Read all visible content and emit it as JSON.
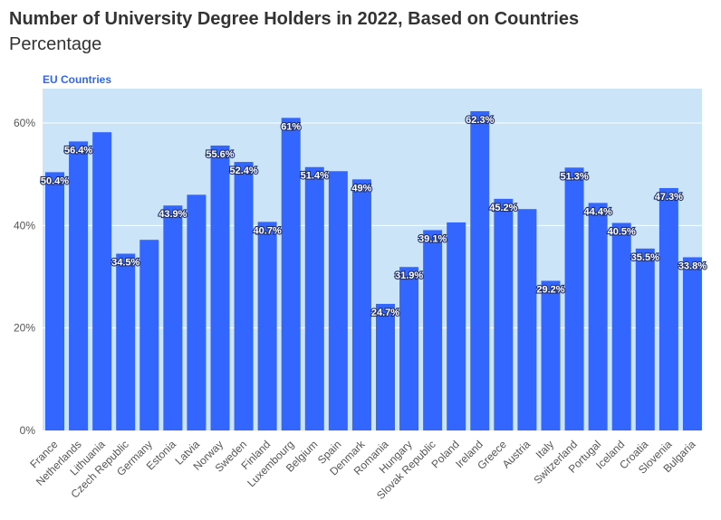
{
  "header": {
    "title": "Number of University Degree Holders in 2022, Based on Countries",
    "subtitle": "Percentage"
  },
  "colors": {
    "bar": "#3366ff",
    "plot_bg": "#cce4f7",
    "grid": "#ffffff",
    "accent": "#3366ee"
  },
  "chart_data": {
    "type": "bar",
    "series_label": "EU Countries",
    "categories": [
      "France",
      "Netherlands",
      "Lithuania",
      "Czech Republic",
      "Germany",
      "Estonia",
      "Latvia",
      "Norway",
      "Sweden",
      "Finland",
      "Luxembourg",
      "Belgium",
      "Spain",
      "Denmark",
      "Romania",
      "Hungary",
      "Slovak Republic",
      "Poland",
      "Ireland",
      "Greece",
      "Austria",
      "Italy",
      "Switzerland",
      "Portugal",
      "Iceland",
      "Croatia",
      "Slovenia",
      "Bulgaria"
    ],
    "values": [
      50.4,
      56.4,
      58.2,
      34.5,
      37.2,
      43.9,
      46.0,
      55.6,
      52.4,
      40.7,
      61.0,
      51.4,
      50.6,
      49.0,
      24.7,
      31.9,
      39.1,
      40.6,
      62.3,
      45.2,
      43.2,
      29.2,
      51.3,
      44.4,
      40.5,
      35.5,
      47.3,
      33.8
    ],
    "data_labels": [
      "50.4%",
      "56.4%",
      null,
      "34.5%",
      null,
      "43.9%",
      null,
      "55.6%",
      "52.4%",
      "40.7%",
      "61%",
      "51.4%",
      null,
      "49%",
      "24.7%",
      "31.9%",
      "39.1%",
      null,
      "62.3%",
      "45.2%",
      null,
      "29.2%",
      "51.3%",
      "44.4%",
      "40.5%",
      "35.5%",
      "47.3%",
      "33.8%"
    ],
    "y_ticks": [
      "0%",
      "20%",
      "40%",
      "60%"
    ],
    "ylim": [
      0,
      60
    ],
    "grid": true
  }
}
